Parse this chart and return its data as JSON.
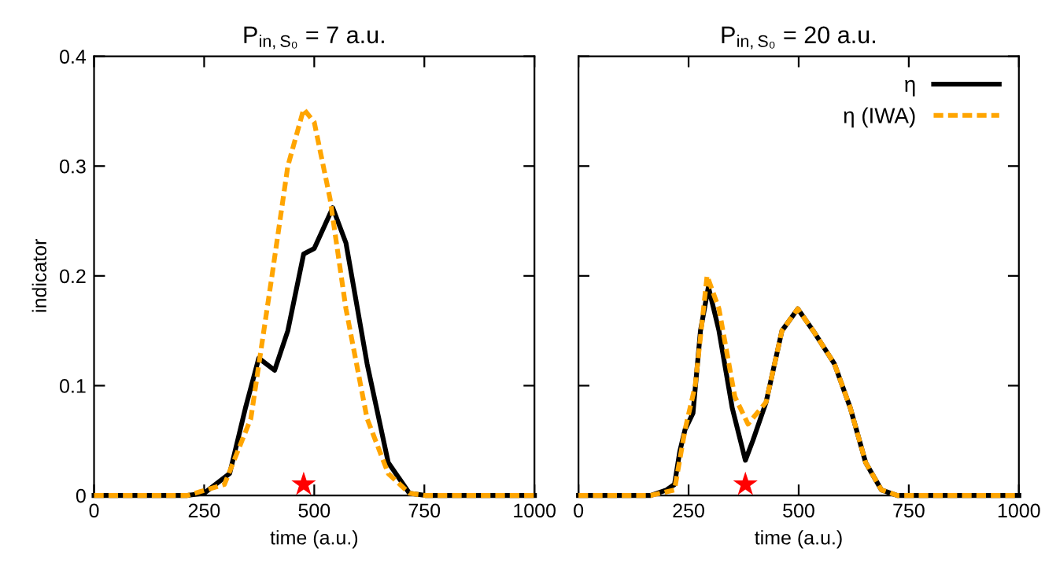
{
  "chart_data": [
    {
      "type": "line",
      "title": "P$_{in,S₀}$ = 7 a.u.",
      "xlabel": "time (a.u.)",
      "ylabel": "indicator",
      "xlim": [
        0,
        1000
      ],
      "xticks": [
        0,
        250,
        500,
        750,
        1000
      ],
      "ylim": [
        0,
        0.4
      ],
      "yticks": [
        0,
        0.1,
        0.2,
        0.3,
        0.4
      ],
      "grid": false,
      "legend": false,
      "series": [
        {
          "color": "#000000",
          "line_style": "solid",
          "x": [
            0,
            212,
            250,
            308,
            344,
            374,
            410,
            440,
            476,
            500,
            542,
            572,
            620,
            668,
            716,
            752,
            1000
          ],
          "values": [
            0,
            0,
            0.002,
            0.02,
            0.08,
            0.125,
            0.114,
            0.15,
            0.22,
            0.225,
            0.262,
            0.23,
            0.12,
            0.03,
            0.002,
            0,
            0
          ]
        },
        {
          "color": "#ffa500",
          "line_style": "dashed",
          "x": [
            0,
            212,
            296,
            356,
            404,
            440,
            476,
            500,
            536,
            572,
            620,
            668,
            716,
            752,
            1000
          ],
          "values": [
            0,
            0,
            0.01,
            0.07,
            0.2,
            0.3,
            0.352,
            0.34,
            0.27,
            0.17,
            0.07,
            0.02,
            0.002,
            0,
            0
          ]
        },
        {
          "type": "scatter",
          "marker": "star",
          "color": "#ff0000",
          "x": [
            476
          ],
          "values": [
            0.01
          ]
        }
      ]
    },
    {
      "type": "line",
      "title": "P$_{in,S₀}$ = 20 a.u.",
      "xlabel": "time (a.u.)",
      "xlim": [
        0,
        1000
      ],
      "xticks": [
        0,
        250,
        500,
        750,
        1000
      ],
      "ylim": [
        0,
        0.4
      ],
      "yticks": [
        0,
        0.1,
        0.2,
        0.3,
        0.4
      ],
      "tick_labels": "x",
      "grid": false,
      "legend": "top right",
      "series": [
        {
          "name": "η",
          "color": "#000000",
          "line_style": "solid",
          "x": [
            0,
            164,
            200,
            218,
            230,
            242,
            260,
            277,
            295,
            319,
            349,
            379,
            396,
            426,
            462,
            498,
            533,
            581,
            617,
            652,
            688,
            724,
            1000
          ],
          "values": [
            0,
            0,
            0.005,
            0.01,
            0.04,
            0.06,
            0.075,
            0.15,
            0.19,
            0.15,
            0.08,
            0.032,
            0.05,
            0.085,
            0.15,
            0.17,
            0.15,
            0.12,
            0.08,
            0.03,
            0.005,
            0,
            0
          ]
        },
        {
          "name": "η (IWA)",
          "color": "#ffa500",
          "line_style": "dashed",
          "x": [
            0,
            164,
            218,
            242,
            265,
            292,
            319,
            355,
            385,
            426,
            462,
            498,
            533,
            581,
            617,
            652,
            688,
            724,
            1000
          ],
          "values": [
            0,
            0,
            0.005,
            0.06,
            0.1,
            0.2,
            0.17,
            0.09,
            0.065,
            0.085,
            0.15,
            0.17,
            0.15,
            0.12,
            0.08,
            0.03,
            0.005,
            0,
            0
          ]
        },
        {
          "type": "scatter",
          "marker": "star",
          "color": "#ff0000",
          "x": [
            379
          ],
          "values": [
            0.01
          ]
        }
      ]
    }
  ]
}
